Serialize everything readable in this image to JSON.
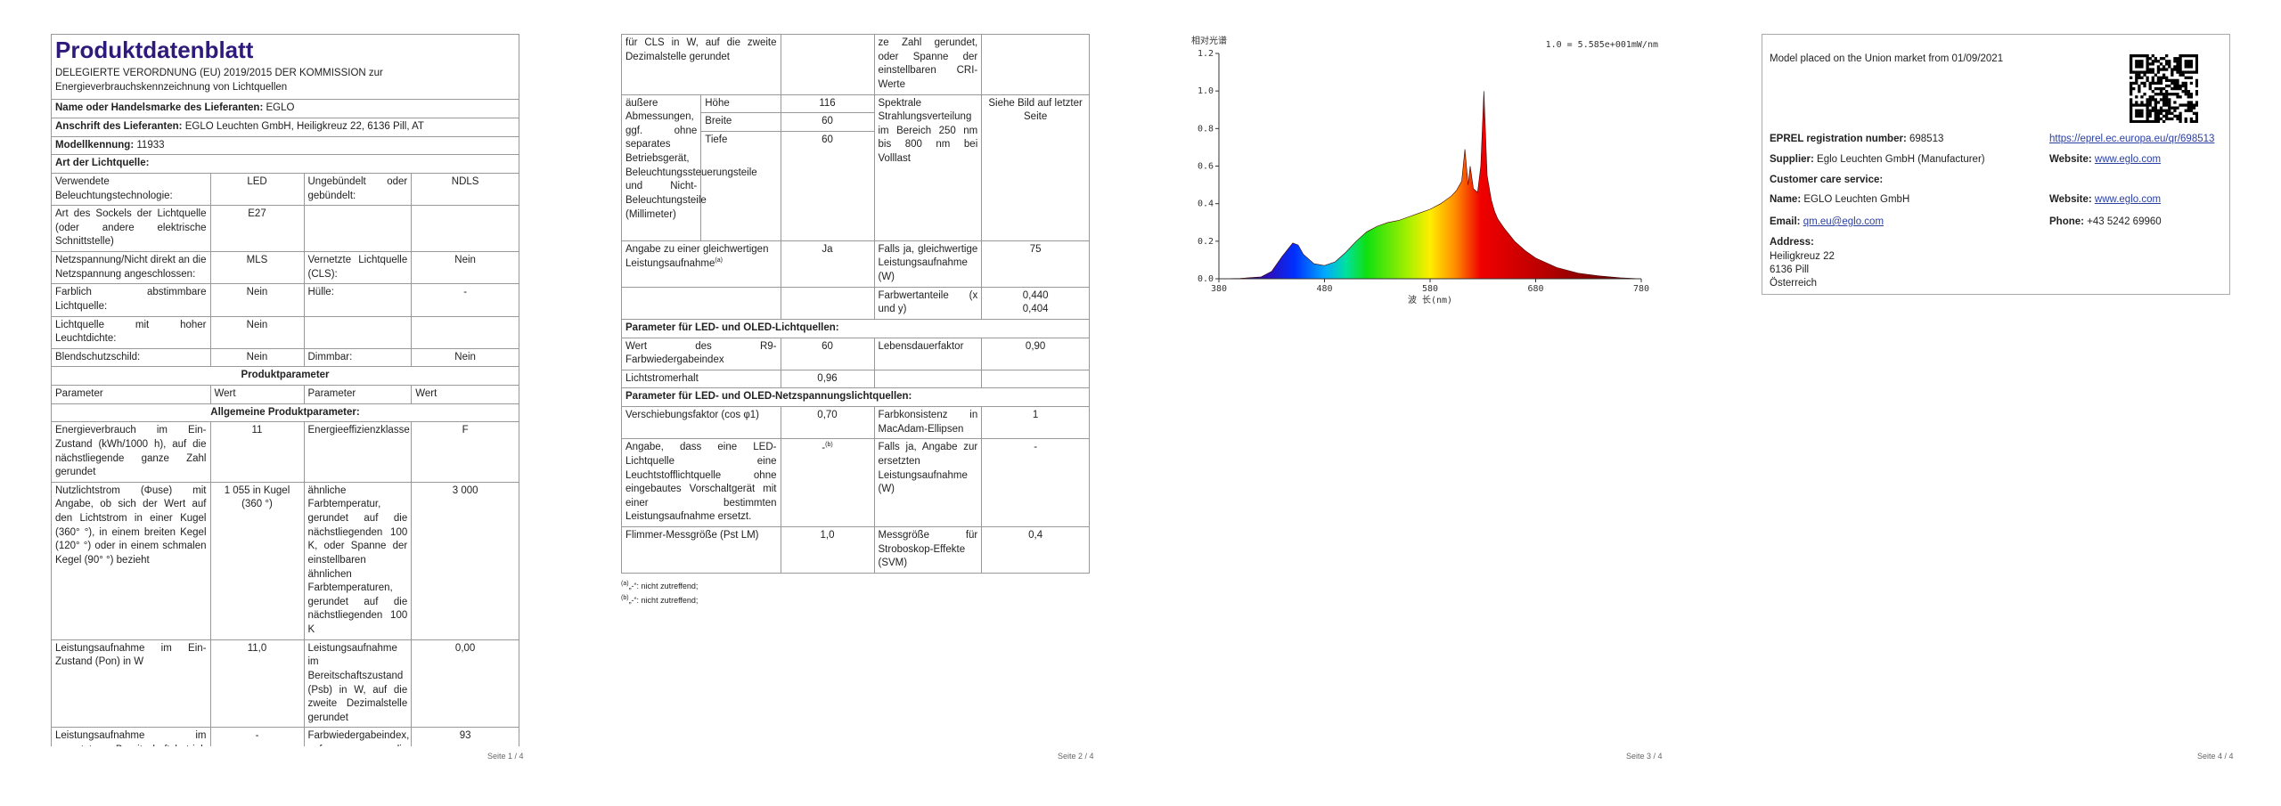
{
  "page1": {
    "title": "Produktdatenblatt",
    "subtitle": "DELEGIERTE VERORDNUNG (EU) 2019/2015 DER KOMMISSION zur Energieverbrauchskennzeichnung von Lichtquellen",
    "supplier_label": "Name oder Handelsmarke des Lieferanten:",
    "supplier": "EGLO",
    "address_label": "Anschrift des Lieferanten:",
    "address": "EGLO Leuchten GmbH, Heiligkreuz 22, 6136 Pill, AT",
    "model_label": "Modellkennung:",
    "model": "11933",
    "type_heading": "Art der Lichtquelle:",
    "type_rows": [
      [
        "Verwendete Beleuchtungstechnologie:",
        "LED",
        "Ungebündelt oder gebündelt:",
        "NDLS"
      ],
      [
        "Art des Sockels der Lichtquelle (oder andere elektrische Schnittstelle)",
        "E27",
        null,
        null
      ],
      [
        "Netzspannung/Nicht direkt an die Netzspannung angeschlossen:",
        "MLS",
        "Vernetzte Lichtquelle (CLS):",
        "Nein"
      ],
      [
        "Farblich abstimmbare Lichtquelle:",
        "Nein",
        "Hülle:",
        "-"
      ],
      [
        "Lichtquelle mit hoher Leuchtdichte:",
        "Nein",
        null,
        null
      ],
      [
        "Blendschutzschild:",
        "Nein",
        "Dimmbar:",
        "Nein"
      ]
    ],
    "product_heading": "Produktparameter",
    "columns": [
      "Parameter",
      "Wert",
      "Parameter",
      "Wert"
    ],
    "general_heading": "Allgemeine Produktparameter:",
    "param_rows": [
      [
        "Energieverbrauch im Ein-Zustand (kWh/1000 h), auf die nächstliegende ganze Zahl gerundet",
        "11",
        "Energieeffizienzklasse",
        "F"
      ],
      [
        "Nutzlichtstrom (Φuse) mit Angabe, ob sich der Wert auf den Lichtstrom in einer Kugel (360° °), in einem breiten Kegel (120° °) oder in einem schmalen Kegel (90° °) bezieht",
        "1 055 in Kugel (360 °)",
        "ähnliche Farbtemperatur, gerundet auf die nächstliegenden 100 K, oder Spanne der einstellbaren ähnlichen Farbtemperaturen, gerundet auf die nächstliegenden 100 K",
        "3 000"
      ],
      [
        "Leistungsaufnahme im Ein-Zustand (Pon) in W",
        "11,0",
        "Leistungsaufnahme im Bereitschaftszustand (Psb) in W, auf die zweite Dezimalstelle gerundet",
        "0,00"
      ],
      [
        "Leistungsaufnahme im vernetzten Bereitschaftsbetrieb (Pnet)",
        "-",
        "Farbwiedergabeindex, auf die nächstliegende gan-",
        "93"
      ]
    ],
    "page_number": "Seite 1 / 4"
  },
  "page2": {
    "cont_row": [
      "für CLS in W, auf die zweite Dezimalstelle gerundet",
      null,
      "ze Zahl gerundet, oder Spanne der einstellbaren CRI-Werte",
      null
    ],
    "dims_label": "äußere Abmessungen, ggf. ohne separates Betriebsgerät, Beleuchtungssteuerungsteile und Nicht-Beleuchtungsteile (Millimeter)",
    "dims": [
      [
        "Höhe",
        "116"
      ],
      [
        "Breite",
        "60"
      ],
      [
        "Tiefe",
        "60"
      ]
    ],
    "spectrum_label": "Spektrale Strahlungsverteilung im Bereich 250 nm bis 800 nm bei Volllast",
    "spectrum_value": "Siehe Bild auf letzter Seite",
    "equiv_label": "Angabe zu einer gleichwertigen Leistungsaufnahme",
    "equiv_ref": "(a)",
    "equiv_value": "Ja",
    "equiv_label2": "Falls ja, gleichwertige Leistungsaufnahme (W)",
    "equiv_value2": "75",
    "chroma_label": "Farbwertanteile (x und y)",
    "chroma_values": [
      "0,440",
      "0,404"
    ],
    "led_heading": "Parameter für LED- und OLED-Lichtquellen:",
    "led_rows": [
      [
        "Wert des R9-Farbwiedergabeindex",
        "60",
        "Lebensdauerfaktor",
        "0,90"
      ],
      [
        "Lichtstromerhalt",
        "0,96",
        null,
        null
      ]
    ],
    "mains_heading": "Parameter für LED- und OLED-Netzspannungslichtquellen:",
    "mains_rows": [
      [
        "Verschiebungsfaktor (cos φ1)",
        "0,70",
        "Farbkonsistenz in MacAdam-Ellipsen",
        "1"
      ],
      [
        "Angabe, dass eine LED-Lichtquelle eine Leuchtstofflichtquelle ohne eingebautes Vorschaltgerät mit einer bestimmten Leistungsaufnahme ersetzt.",
        "-",
        "Falls ja, Angabe zur ersetzten Leistungsaufnahme (W)",
        "-"
      ],
      [
        "Flimmer-Messgröße (Pst LM)",
        "1,0",
        "Messgröße für Stroboskop-Effekte (SVM)",
        "0,4"
      ]
    ],
    "mains_ref": "(b)",
    "footnotes": [
      {
        "mark": "(a)",
        "text": "„-“: nicht zutreffend;"
      },
      {
        "mark": "(b)",
        "text": "„-“: nicht zutreffend;"
      }
    ],
    "page_number": "Seite 2 / 4"
  },
  "chart_data": {
    "type": "area",
    "y_label": "相对光谱",
    "annotation": "1.0 = 5.585e+001mW/nm",
    "x_label": "波 长(nm)",
    "x": [
      380,
      400,
      420,
      430,
      440,
      450,
      455,
      460,
      470,
      480,
      490,
      500,
      510,
      520,
      530,
      540,
      550,
      560,
      570,
      580,
      590,
      600,
      605,
      610,
      613,
      616,
      618,
      621,
      625,
      628,
      631,
      634,
      638,
      641,
      644,
      650,
      660,
      670,
      680,
      700,
      720,
      740,
      760,
      780
    ],
    "values": [
      0,
      0.002,
      0.01,
      0.04,
      0.12,
      0.19,
      0.18,
      0.13,
      0.08,
      0.07,
      0.09,
      0.14,
      0.2,
      0.25,
      0.28,
      0.3,
      0.31,
      0.33,
      0.35,
      0.37,
      0.4,
      0.44,
      0.47,
      0.52,
      0.69,
      0.5,
      0.6,
      0.48,
      0.46,
      0.6,
      1.0,
      0.55,
      0.42,
      0.36,
      0.32,
      0.27,
      0.2,
      0.15,
      0.11,
      0.06,
      0.03,
      0.015,
      0.005,
      0
    ],
    "xlim": [
      380,
      780
    ],
    "xticks": [
      380,
      480,
      580,
      680,
      780
    ],
    "ylim": [
      0,
      1.2
    ],
    "yticks": [
      {
        "value": 0,
        "label": "0.0"
      },
      0.2,
      0.4,
      0.6,
      0.8,
      {
        "value": 1,
        "label": "1.0"
      },
      1.2
    ],
    "grid": false
  },
  "page3": {
    "page_number": "Seite 3 / 4"
  },
  "page4": {
    "market": "Model placed on the Union market from 01/09/2021",
    "eprel_label": "EPREL registration number:",
    "eprel": "698513",
    "eprel_link": "https://eprel.ec.europa.eu/qr/698513",
    "supplier_label": "Supplier:",
    "supplier": "Eglo Leuchten GmbH (Manufacturer)",
    "website_label": "Website:",
    "website": "www.eglo.com",
    "care_heading": "Customer care service:",
    "name_label": "Name:",
    "name": "EGLO Leuchten GmbH",
    "care_website_label": "Website:",
    "care_website": "www.eglo.com",
    "email_label": "Email:",
    "email": "qm.eu@eglo.com",
    "phone_label": "Phone:",
    "phone": "+43 5242 69960",
    "address_label": "Address:",
    "address": [
      "Heiligkreuz 22",
      "6136 Pill",
      "Österreich"
    ],
    "page_number": "Seite 4 / 4"
  }
}
